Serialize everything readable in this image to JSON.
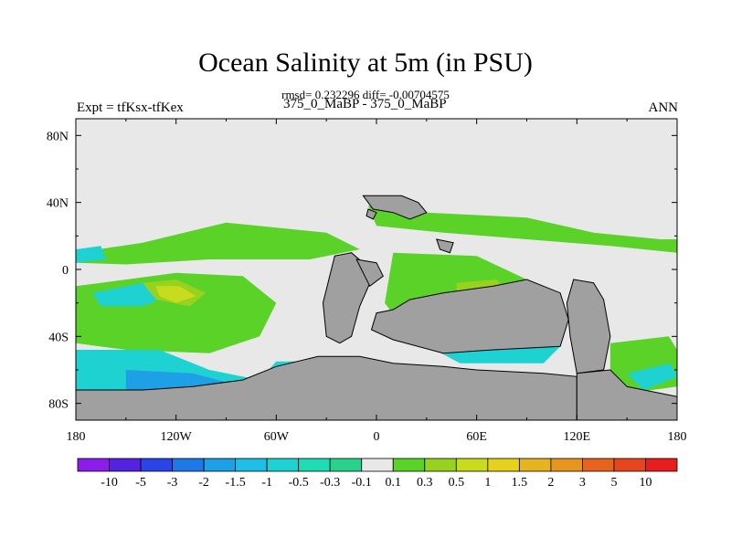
{
  "plot": {
    "title": "Ocean Salinity at 5m (in PSU)",
    "subtitle": "rmsd= 0.232296 diff= -0.00704575",
    "left_string": "Expt = tfKsx-tfKex",
    "center_string": "375_0_MaBP - 375_0_MaBP",
    "right_string": "ANN"
  },
  "chart_data": {
    "type": "heatmap",
    "title": "Ocean Salinity at 5m (in PSU)",
    "subtitle": "rmsd= 0.232296 diff= -0.00704575",
    "variable": "Ocean Salinity at 5m",
    "units": "PSU",
    "rmsd": 0.232296,
    "diff": -0.00704575,
    "xlabel": "",
    "ylabel": "",
    "xlim": [
      -180,
      180
    ],
    "ylim": [
      -90,
      90
    ],
    "x_ticks": [
      {
        "value": -180,
        "label": "180"
      },
      {
        "value": -120,
        "label": "120W"
      },
      {
        "value": -60,
        "label": "60W"
      },
      {
        "value": 0,
        "label": "0"
      },
      {
        "value": 60,
        "label": "60E"
      },
      {
        "value": 120,
        "label": "120E"
      },
      {
        "value": 180,
        "label": "180"
      }
    ],
    "y_ticks": [
      {
        "value": 80,
        "label": "80N"
      },
      {
        "value": 40,
        "label": "40N"
      },
      {
        "value": 0,
        "label": "0"
      },
      {
        "value": -40,
        "label": "40S"
      },
      {
        "value": -80,
        "label": "80S"
      }
    ],
    "colorbar": {
      "levels": [
        "-10",
        "-5",
        "-3",
        "-2",
        "-1.5",
        "-1",
        "-0.5",
        "-0.3",
        "-0.1",
        "0.1",
        "0.3",
        "0.5",
        "1",
        "1.5",
        "2",
        "3",
        "5",
        "10"
      ],
      "colors": [
        "#8C1DE8",
        "#5522E0",
        "#2A44E6",
        "#1E78E6",
        "#1EA0E6",
        "#1EBEE6",
        "#1ED2D2",
        "#1EDCB4",
        "#28D28C",
        "#E8E8E8",
        "#5AD228",
        "#96D21E",
        "#C8DC1E",
        "#E6D21E",
        "#E6B41E",
        "#E6961E",
        "#E6641E",
        "#E6461E",
        "#E61E1E"
      ]
    },
    "land_color": "#A0A0A0",
    "regions": [
      {
        "name": "north-pacific-band",
        "value": 0.2,
        "color": "#5AD228",
        "points": [
          [
            -180,
            10
          ],
          [
            -140,
            16
          ],
          [
            -90,
            28
          ],
          [
            -30,
            22
          ],
          [
            -10,
            12
          ],
          [
            -40,
            6
          ],
          [
            -100,
            6
          ],
          [
            -150,
            3
          ],
          [
            -180,
            4
          ]
        ]
      },
      {
        "name": "west-pacific-cyan",
        "value": -0.6,
        "color": "#1ED2D2",
        "points": [
          [
            -180,
            12
          ],
          [
            -165,
            14
          ],
          [
            -162,
            6
          ],
          [
            -180,
            4
          ]
        ]
      },
      {
        "name": "north-atlantic-band",
        "value": 0.2,
        "color": "#5AD228",
        "points": [
          [
            -5,
            38
          ],
          [
            30,
            34
          ],
          [
            90,
            31
          ],
          [
            130,
            22
          ],
          [
            170,
            18
          ],
          [
            180,
            18
          ],
          [
            180,
            10
          ],
          [
            140,
            14
          ],
          [
            90,
            18
          ],
          [
            40,
            22
          ],
          [
            0,
            26
          ]
        ]
      },
      {
        "name": "south-pacific-green",
        "value": 0.2,
        "color": "#5AD228",
        "points": [
          [
            -165,
            -8
          ],
          [
            -120,
            -2
          ],
          [
            -80,
            -4
          ],
          [
            -60,
            -20
          ],
          [
            -70,
            -40
          ],
          [
            -100,
            -50
          ],
          [
            -150,
            -48
          ],
          [
            -180,
            -44
          ],
          [
            -180,
            -10
          ]
        ]
      },
      {
        "name": "south-pacific-cyan-band",
        "value": -0.6,
        "color": "#1ED2D2",
        "points": [
          [
            -170,
            -14
          ],
          [
            -140,
            -8
          ],
          [
            -125,
            -16
          ],
          [
            -140,
            -22
          ],
          [
            -165,
            -22
          ]
        ]
      },
      {
        "name": "south-pacific-yellow",
        "value": 0.5,
        "color": "#96D21E",
        "points": [
          [
            -140,
            -8
          ],
          [
            -120,
            -6
          ],
          [
            -102,
            -14
          ],
          [
            -112,
            -22
          ],
          [
            -132,
            -18
          ]
        ]
      },
      {
        "name": "south-pacific-salty-core",
        "value": 1.0,
        "color": "#C8DC1E",
        "points": [
          [
            -132,
            -10
          ],
          [
            -118,
            -10
          ],
          [
            -108,
            -16
          ],
          [
            -120,
            -20
          ],
          [
            -130,
            -16
          ]
        ]
      },
      {
        "name": "southern-ocean-cyan",
        "value": -0.8,
        "color": "#1ED2D2",
        "points": [
          [
            -180,
            -48
          ],
          [
            -130,
            -48
          ],
          [
            -100,
            -60
          ],
          [
            -70,
            -66
          ],
          [
            -60,
            -55
          ],
          [
            -20,
            -55
          ],
          [
            0,
            -60
          ],
          [
            -8,
            -75
          ],
          [
            -60,
            -80
          ],
          [
            -140,
            -84
          ],
          [
            -180,
            -84
          ]
        ]
      },
      {
        "name": "southern-ocean-blue",
        "value": -1.2,
        "color": "#1EA0E6",
        "points": [
          [
            -150,
            -60
          ],
          [
            -110,
            -62
          ],
          [
            -80,
            -70
          ],
          [
            -40,
            -66
          ],
          [
            -20,
            -70
          ],
          [
            -40,
            -76
          ],
          [
            -100,
            -76
          ],
          [
            -150,
            -72
          ]
        ]
      },
      {
        "name": "indian-ocean-green",
        "value": 0.2,
        "color": "#5AD228",
        "points": [
          [
            10,
            10
          ],
          [
            60,
            8
          ],
          [
            90,
            -6
          ],
          [
            100,
            -28
          ],
          [
            60,
            -40
          ],
          [
            20,
            -40
          ],
          [
            5,
            -20
          ]
        ]
      },
      {
        "name": "indian-ocean-yellow",
        "value": 0.5,
        "color": "#96D21E",
        "points": [
          [
            48,
            -8
          ],
          [
            72,
            -6
          ],
          [
            80,
            -16
          ],
          [
            62,
            -24
          ],
          [
            48,
            -18
          ]
        ]
      },
      {
        "name": "south-indian-cyan",
        "value": -0.6,
        "color": "#1ED2D2",
        "points": [
          [
            30,
            -38
          ],
          [
            80,
            -38
          ],
          [
            110,
            -46
          ],
          [
            100,
            -56
          ],
          [
            50,
            -56
          ],
          [
            35,
            -48
          ]
        ]
      },
      {
        "name": "east-southern-green",
        "value": 0.2,
        "color": "#5AD228",
        "points": [
          [
            140,
            -44
          ],
          [
            175,
            -40
          ],
          [
            180,
            -48
          ],
          [
            180,
            -70
          ],
          [
            150,
            -74
          ],
          [
            140,
            -60
          ]
        ]
      },
      {
        "name": "east-southern-cyan",
        "value": -0.6,
        "color": "#1ED2D2",
        "points": [
          [
            150,
            -62
          ],
          [
            176,
            -56
          ],
          [
            180,
            -64
          ],
          [
            160,
            -72
          ]
        ]
      }
    ],
    "land": [
      {
        "name": "polar-continent",
        "points": [
          [
            -180,
            -72
          ],
          [
            -140,
            -72
          ],
          [
            -110,
            -70
          ],
          [
            -80,
            -66
          ],
          [
            -60,
            -58
          ],
          [
            -35,
            -52
          ],
          [
            -10,
            -52
          ],
          [
            10,
            -56
          ],
          [
            40,
            -58
          ],
          [
            60,
            -60
          ],
          [
            100,
            -62
          ],
          [
            120,
            -64
          ],
          [
            120,
            -90
          ],
          [
            -180,
            -90
          ]
        ]
      },
      {
        "name": "polar-continent-east",
        "points": [
          [
            120,
            -62
          ],
          [
            140,
            -60
          ],
          [
            150,
            -70
          ],
          [
            180,
            -76
          ],
          [
            180,
            -90
          ],
          [
            120,
            -90
          ]
        ]
      },
      {
        "name": "western-continent",
        "points": [
          [
            -25,
            8
          ],
          [
            -15,
            10
          ],
          [
            -8,
            4
          ],
          [
            -3,
            -6
          ],
          [
            -10,
            -22
          ],
          [
            -15,
            -40
          ],
          [
            -22,
            -44
          ],
          [
            -30,
            -40
          ],
          [
            -32,
            -20
          ],
          [
            -28,
            -4
          ]
        ]
      },
      {
        "name": "western-continent-spur",
        "points": [
          [
            -12,
            6
          ],
          [
            0,
            4
          ],
          [
            4,
            -4
          ],
          [
            -4,
            -10
          ]
        ]
      },
      {
        "name": "central-continent",
        "points": [
          [
            20,
            -18
          ],
          [
            40,
            -14
          ],
          [
            70,
            -10
          ],
          [
            90,
            -6
          ],
          [
            110,
            -14
          ],
          [
            115,
            -30
          ],
          [
            110,
            -46
          ],
          [
            70,
            -48
          ],
          [
            40,
            -50
          ],
          [
            10,
            -42
          ],
          [
            -3,
            -36
          ],
          [
            0,
            -26
          ],
          [
            10,
            -24
          ]
        ]
      },
      {
        "name": "eastern-continent",
        "points": [
          [
            118,
            -6
          ],
          [
            130,
            -8
          ],
          [
            136,
            -18
          ],
          [
            140,
            -40
          ],
          [
            136,
            -60
          ],
          [
            120,
            -62
          ],
          [
            116,
            -40
          ],
          [
            114,
            -20
          ]
        ]
      },
      {
        "name": "northern-island",
        "points": [
          [
            -8,
            44
          ],
          [
            15,
            44
          ],
          [
            25,
            40
          ],
          [
            30,
            34
          ],
          [
            20,
            30
          ],
          [
            10,
            34
          ],
          [
            -2,
            36
          ]
        ]
      },
      {
        "name": "small-island-east",
        "points": [
          [
            36,
            18
          ],
          [
            46,
            16
          ],
          [
            44,
            10
          ],
          [
            38,
            12
          ]
        ]
      },
      {
        "name": "northern-island-spur",
        "points": [
          [
            -5,
            36
          ],
          [
            0,
            34
          ],
          [
            -2,
            30
          ],
          [
            -6,
            32
          ]
        ]
      }
    ]
  }
}
